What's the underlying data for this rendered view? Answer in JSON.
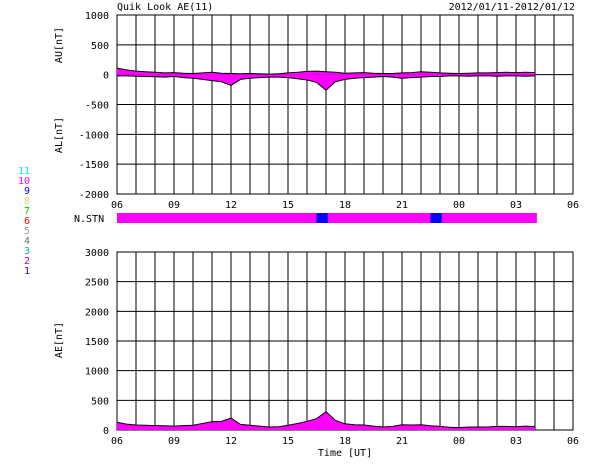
{
  "header": {
    "title": "Quik Look AE(11)",
    "date_range": "2012/01/11-2012/01/12"
  },
  "station_legend": {
    "numbers": [
      "11",
      "10",
      "9",
      "8",
      "7",
      "6",
      "5",
      "4",
      "3",
      "2",
      "1"
    ],
    "colors": [
      "#00e5e5",
      "#ff00ff",
      "#0000ff",
      "#d8d870",
      "#00cc00",
      "#ff0000",
      "#a0a0a0",
      "#707070",
      "#00b3b3",
      "#b000b0",
      "#1010a0"
    ],
    "label": "N.STN"
  },
  "chart_data": [
    {
      "type": "area",
      "title": "AU / AL",
      "ylabel_upper": "AU[nT]",
      "ylabel_lower": "AL[nT]",
      "xlabel": "",
      "ylim": [
        -2000,
        1000
      ],
      "y_ticks": [
        "1000",
        "500",
        "0",
        "-500",
        "-1000",
        "-1500",
        "-2000"
      ],
      "x_tick_labels": [
        "06",
        "09",
        "12",
        "15",
        "18",
        "21",
        "00",
        "03",
        "06"
      ],
      "x_range_hours": [
        6,
        30
      ],
      "data_end_hour": 28.1,
      "grid": true,
      "series": [
        {
          "name": "AU",
          "x": [
            6.0,
            6.5,
            7.0,
            7.5,
            8.0,
            8.5,
            9.0,
            9.5,
            10.0,
            10.5,
            11.0,
            11.5,
            12.0,
            12.5,
            13.0,
            13.5,
            14.0,
            14.5,
            15.0,
            15.5,
            16.0,
            16.5,
            17.0,
            17.5,
            18.0,
            18.5,
            19.0,
            19.5,
            20.0,
            20.5,
            21.0,
            21.5,
            22.0,
            22.5,
            23.0,
            23.5,
            24.0,
            24.5,
            25.0,
            25.5,
            26.0,
            26.5,
            27.0,
            27.5,
            28.0
          ],
          "values": [
            110,
            80,
            60,
            50,
            40,
            30,
            35,
            25,
            20,
            30,
            40,
            25,
            20,
            15,
            20,
            15,
            10,
            15,
            30,
            40,
            55,
            60,
            50,
            40,
            25,
            30,
            35,
            25,
            20,
            20,
            30,
            35,
            50,
            40,
            30,
            25,
            20,
            25,
            30,
            30,
            35,
            40,
            35,
            40,
            35
          ]
        },
        {
          "name": "AL",
          "x": [
            6.0,
            6.5,
            7.0,
            7.5,
            8.0,
            8.5,
            9.0,
            9.5,
            10.0,
            10.5,
            11.0,
            11.5,
            12.0,
            12.5,
            13.0,
            13.5,
            14.0,
            14.5,
            15.0,
            15.5,
            16.0,
            16.5,
            17.0,
            17.5,
            18.0,
            18.5,
            19.0,
            19.5,
            20.0,
            20.5,
            21.0,
            21.5,
            22.0,
            22.5,
            23.0,
            23.5,
            24.0,
            24.5,
            25.0,
            25.5,
            26.0,
            26.5,
            27.0,
            27.5,
            28.0
          ],
          "values": [
            -20,
            -20,
            -25,
            -30,
            -35,
            -40,
            -30,
            -50,
            -60,
            -80,
            -100,
            -120,
            -180,
            -80,
            -60,
            -50,
            -40,
            -40,
            -50,
            -70,
            -90,
            -130,
            -260,
            -120,
            -80,
            -60,
            -50,
            -40,
            -30,
            -40,
            -60,
            -50,
            -40,
            -30,
            -30,
            -20,
            -20,
            -25,
            -20,
            -20,
            -25,
            -20,
            -20,
            -25,
            -20
          ]
        }
      ]
    },
    {
      "type": "bar",
      "title": "N.STN",
      "ylabel": "",
      "xlabel": "",
      "x_range_hours": [
        6,
        30
      ],
      "segments": [
        {
          "start": 6.0,
          "end": 16.5,
          "stations": 10
        },
        {
          "start": 16.5,
          "end": 17.1,
          "stations": 9
        },
        {
          "start": 17.1,
          "end": 22.5,
          "stations": 10
        },
        {
          "start": 22.5,
          "end": 23.1,
          "stations": 9
        },
        {
          "start": 23.1,
          "end": 28.1,
          "stations": 10
        }
      ]
    },
    {
      "type": "area",
      "title": "AE",
      "ylabel": "AE[nT]",
      "xlabel": "Time [UT]",
      "ylim": [
        0,
        3000
      ],
      "y_ticks": [
        "3000",
        "2500",
        "2000",
        "1500",
        "1000",
        "500",
        "0"
      ],
      "x_tick_labels": [
        "06",
        "09",
        "12",
        "15",
        "18",
        "21",
        "00",
        "03",
        "06"
      ],
      "x_range_hours": [
        6,
        30
      ],
      "data_end_hour": 28.1,
      "grid": true,
      "series": [
        {
          "name": "AE",
          "x": [
            6.0,
            6.5,
            7.0,
            7.5,
            8.0,
            8.5,
            9.0,
            9.5,
            10.0,
            10.5,
            11.0,
            11.5,
            12.0,
            12.5,
            13.0,
            13.5,
            14.0,
            14.5,
            15.0,
            15.5,
            16.0,
            16.5,
            17.0,
            17.5,
            18.0,
            18.5,
            19.0,
            19.5,
            20.0,
            20.5,
            21.0,
            21.5,
            22.0,
            22.5,
            23.0,
            23.5,
            24.0,
            24.5,
            25.0,
            25.5,
            26.0,
            26.5,
            27.0,
            27.5,
            28.0
          ],
          "values": [
            130,
            100,
            85,
            80,
            75,
            70,
            65,
            75,
            80,
            110,
            140,
            145,
            200,
            95,
            80,
            65,
            50,
            55,
            80,
            110,
            145,
            190,
            310,
            160,
            105,
            90,
            85,
            65,
            50,
            60,
            90,
            85,
            90,
            70,
            60,
            45,
            40,
            50,
            50,
            50,
            60,
            60,
            55,
            65,
            55
          ]
        }
      ]
    }
  ]
}
